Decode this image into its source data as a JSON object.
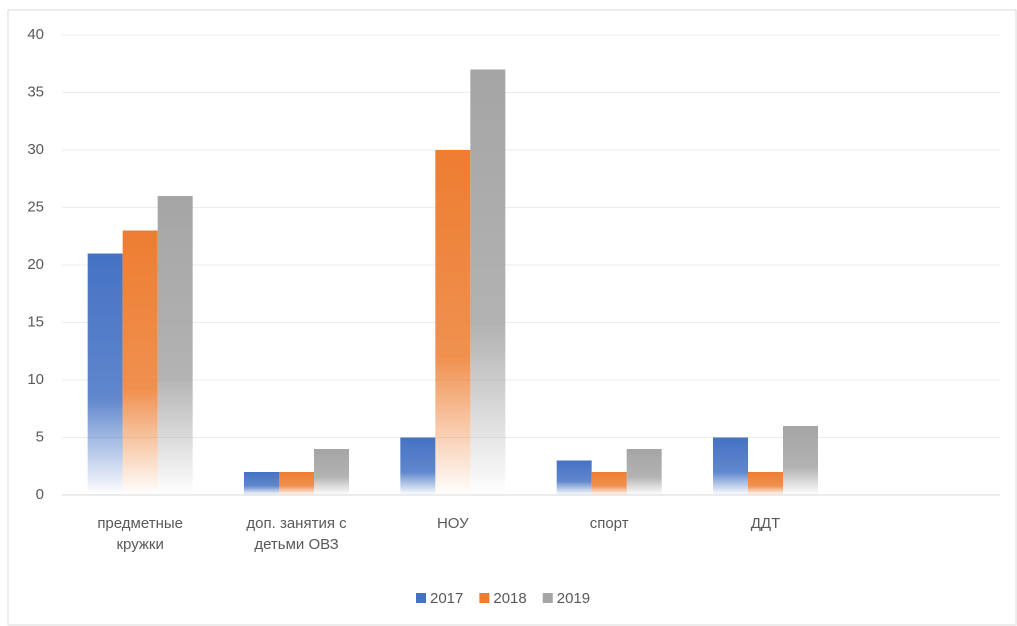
{
  "chart_data": {
    "type": "bar",
    "categories": [
      "предметные кружки",
      "доп. занятия с детьми ОВЗ",
      "НОУ",
      "спорт",
      "ДДТ",
      null
    ],
    "series": [
      {
        "name": "2017",
        "color": "#4472c4",
        "values": [
          21,
          2,
          5,
          3,
          5,
          null
        ]
      },
      {
        "name": "2018",
        "color": "#ed7d31",
        "values": [
          23,
          2,
          30,
          2,
          2,
          null
        ]
      },
      {
        "name": "2019",
        "color": "#a5a5a5",
        "values": [
          26,
          4,
          37,
          4,
          6,
          null
        ]
      }
    ],
    "ylim": [
      0,
      40
    ],
    "yticks": [
      0,
      5,
      10,
      15,
      20,
      25,
      30,
      35,
      40
    ],
    "grid": true,
    "legend": "bottom"
  }
}
